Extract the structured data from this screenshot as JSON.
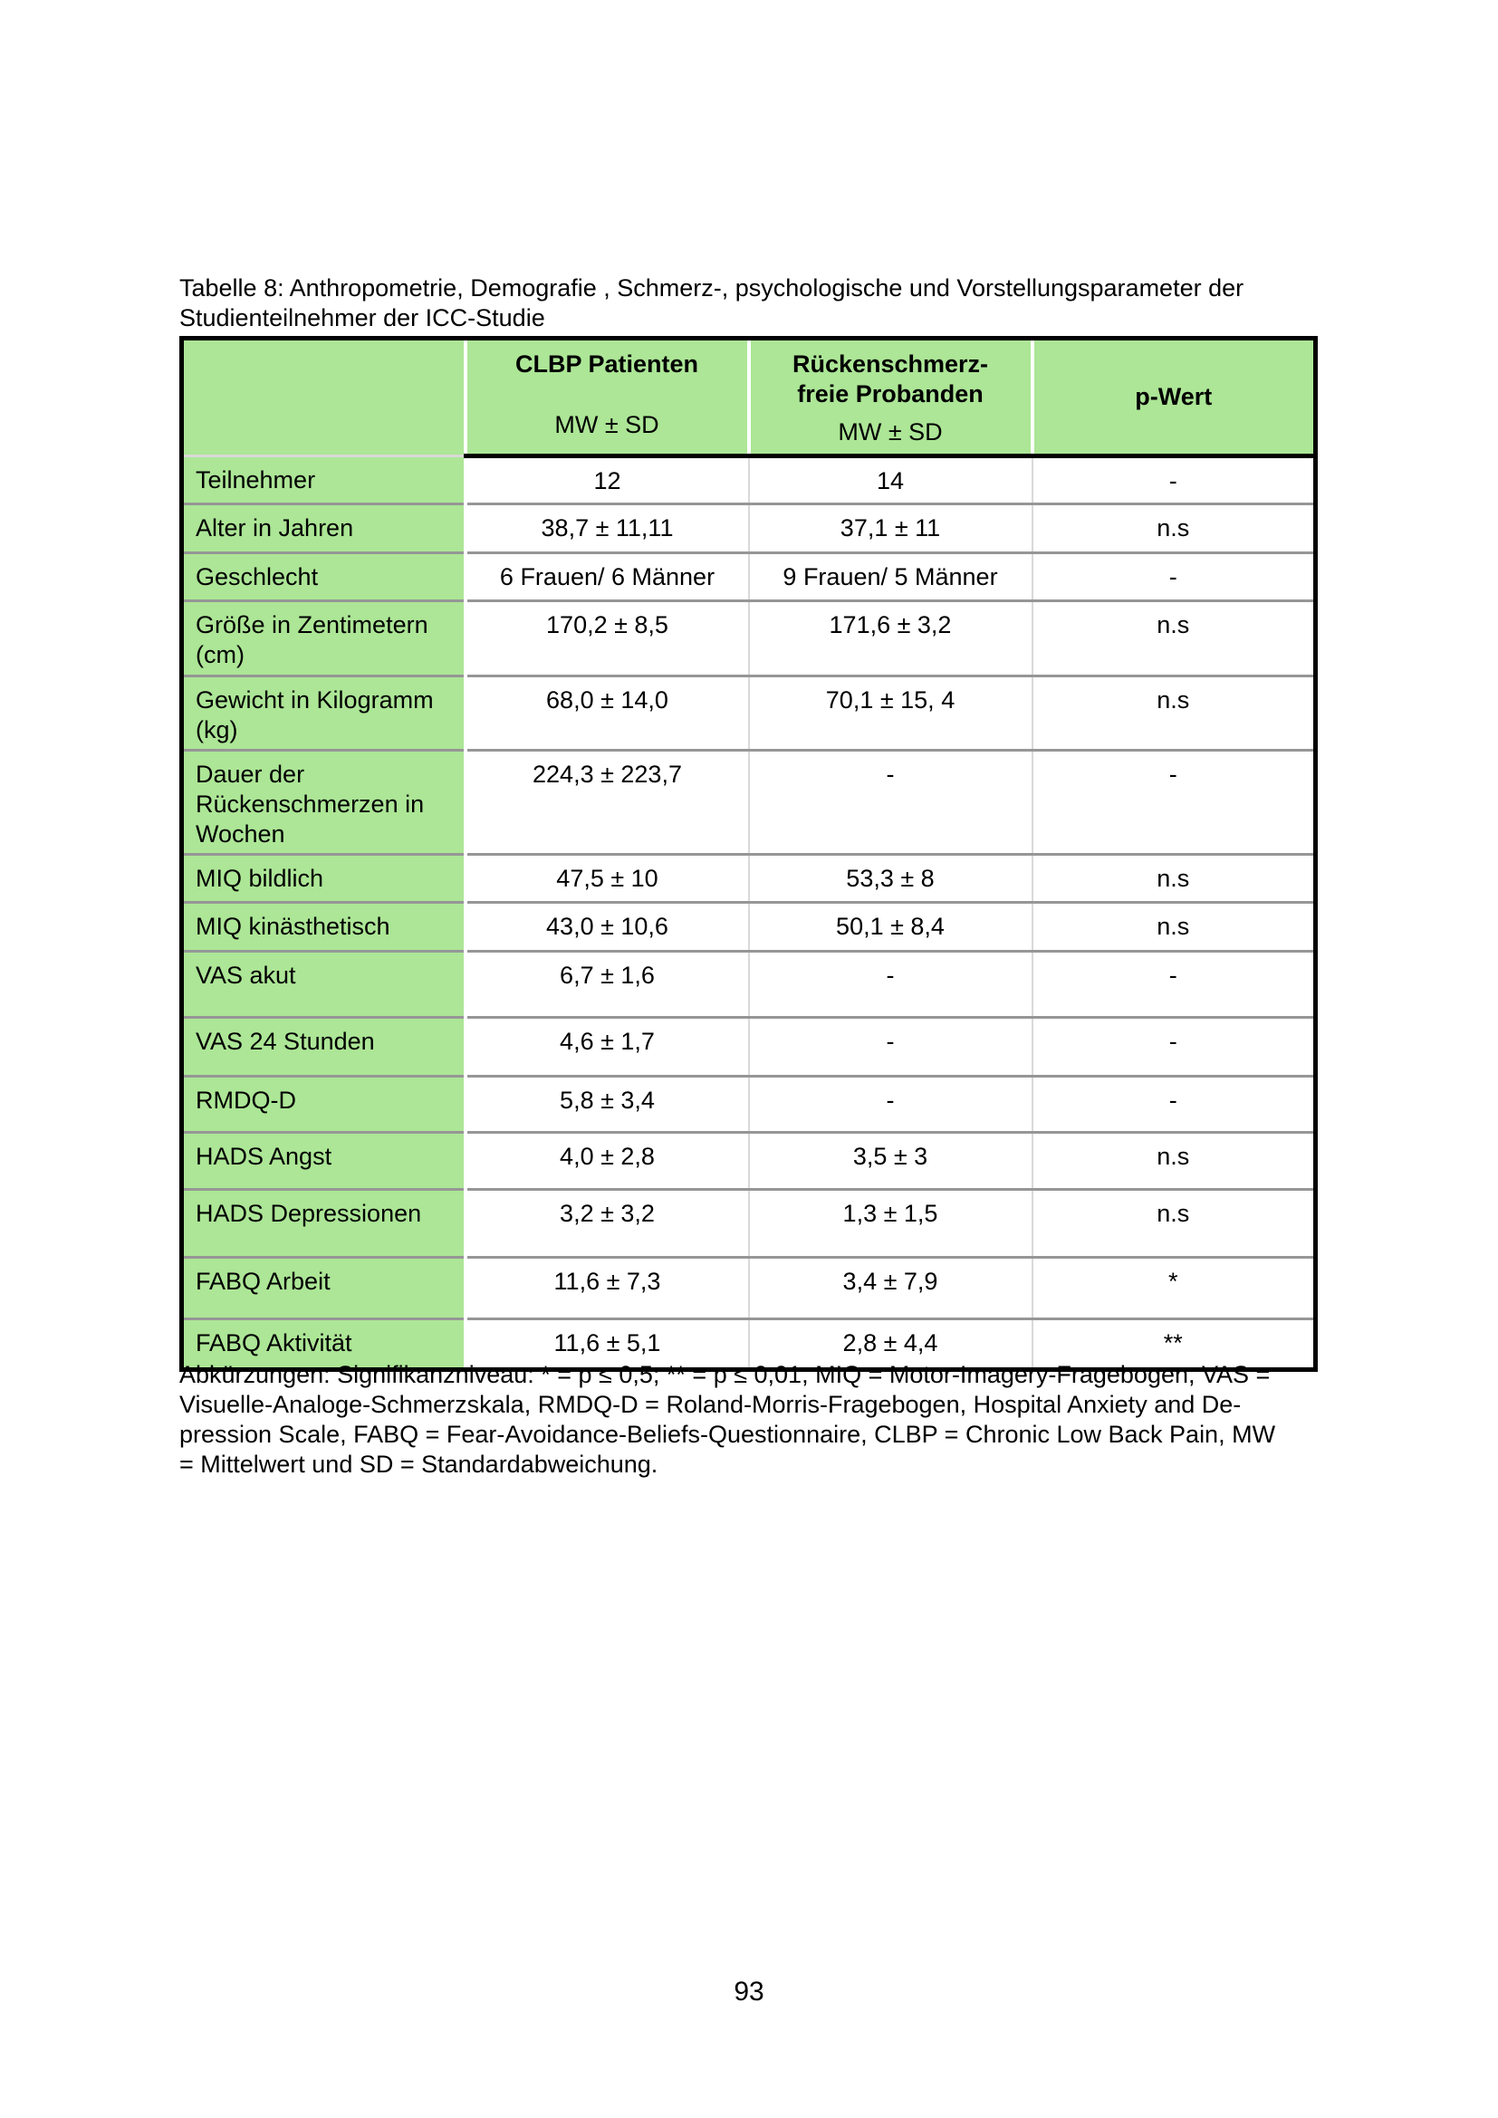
{
  "caption": {
    "lines": [
      "Tabelle 8: Anthropometrie, Demografie , Schmerz-, psychologische und Vorstellungsparameter der",
      "Studienteilnehmer der ICC-Studie"
    ]
  },
  "table": {
    "header": {
      "clbp_title": "CLBP Patienten",
      "clbp_sub": "MW ± SD",
      "control_title_line1": "Rückenschmerz-",
      "control_title_line2": "freie Probanden",
      "control_sub": "MW ± SD",
      "p_label": "p-Wert"
    },
    "rows": [
      {
        "label": "Teilnehmer",
        "clbp": "12",
        "control": "14",
        "p": "-"
      },
      {
        "label": "Alter in Jahren",
        "clbp": "38,7 ± 11,11",
        "control": "37,1 ± 11",
        "p": "n.s"
      },
      {
        "label": "Geschlecht",
        "clbp": "6 Frauen/ 6 Männer",
        "control": "9 Frauen/ 5 Männer",
        "p": "-"
      },
      {
        "label": "Größe in Zentimetern (cm)",
        "clbp": "170,2 ± 8,5",
        "control": "171,6 ± 3,2",
        "p": "n.s"
      },
      {
        "label": "Gewicht in Kilogramm (kg)",
        "clbp": "68,0 ± 14,0",
        "control": "70,1 ± 15, 4",
        "p": "n.s"
      },
      {
        "label": "Dauer der Rückenschmerzen in Wochen",
        "clbp": "224,3 ± 223,7",
        "control": "-",
        "p": "-"
      },
      {
        "label": "MIQ bildlich",
        "clbp": "47,5 ± 10",
        "control": "53,3 ± 8",
        "p": "n.s"
      },
      {
        "label": "MIQ kinästhetisch",
        "clbp": "43,0 ± 10,6",
        "control": "50,1 ± 8,4",
        "p": "n.s"
      },
      {
        "label": "VAS akut",
        "clbp": "6,7 ± 1,6",
        "control": "-",
        "p": "-"
      },
      {
        "label": "VAS 24 Stunden",
        "clbp": "4,6 ± 1,7",
        "control": "-",
        "p": "-"
      },
      {
        "label": "RMDQ-D",
        "clbp": "5,8 ± 3,4",
        "control": "-",
        "p": "-"
      },
      {
        "label": "HADS Angst",
        "clbp": "4,0 ± 2,8",
        "control": "3,5 ± 3",
        "p": "n.s"
      },
      {
        "label": "HADS Depressionen",
        "clbp": "3,2 ± 3,2",
        "control": "1,3 ± 1,5",
        "p": "n.s"
      },
      {
        "label": "FABQ Arbeit",
        "clbp": "11,6 ± 7,3",
        "control": "3,4 ± 7,9",
        "p": "*"
      },
      {
        "label": "FABQ Aktivität",
        "clbp": "11,6 ± 5,1",
        "control": "2,8 ± 4,4",
        "p": "**"
      }
    ]
  },
  "footnote": {
    "lines": [
      "Abkürzungen: Signifikanzniveau: * = p ≤ 0,5; ** = p ≤ 0,01, MIQ = Motor-Imagery-Fragebogen, VAS =",
      "Visuelle-Analoge-Schmerzskala, RMDQ-D = Roland-Morris-Fragebogen, Hospital Anxiety and De-",
      "pression Scale, FABQ = Fear-Avoidance-Beliefs-Questionnaire, CLBP = Chronic Low Back Pain, MW",
      "= Mittelwert und SD = Standardabweichung."
    ]
  },
  "page_number": "93",
  "colors": {
    "header_green": "#ace696",
    "row_separator": "#969696",
    "column_separator": "#d9d9d9",
    "table_border": "#000000"
  }
}
